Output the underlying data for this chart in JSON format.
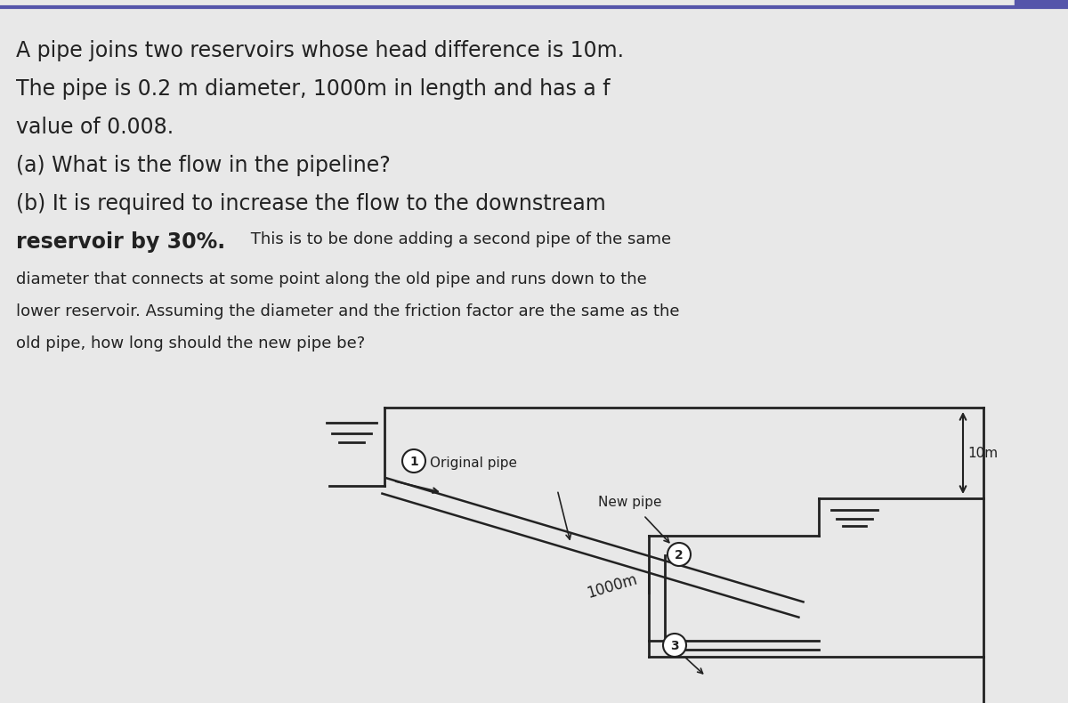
{
  "bg_color": "#d8d8d8",
  "content_bg": "#e8e8e8",
  "line_color": "#222222",
  "text_color": "#222222",
  "line1": "A pipe joins two reservoirs whose head difference is 10m.",
  "line2": "The pipe is 0.2 m diameter, 1000m in length and has a f",
  "line3": "value of 0.008.",
  "line4": "(a) What is the flow in the pipeline?",
  "line5": "(b) It is required to increase the flow to the downstream",
  "line6_bold": "reservoir by 30%.",
  "line6_rest": " This is to be done adding a second pipe of the same",
  "line7": "diameter that connects at some point along the old pipe and runs down to the",
  "line8": "lower reservoir. Assuming the diameter and the friction factor are the same as the",
  "line9": "old pipe, how long should the new pipe be?",
  "label_original": "Original pipe",
  "label_new": "New pipe",
  "label_10m": "10m",
  "label_1000m": "1000m",
  "node1": "1",
  "node2": "2",
  "node3": "3",
  "large_fs": 17,
  "small_fs": 13,
  "diag_fs": 11
}
